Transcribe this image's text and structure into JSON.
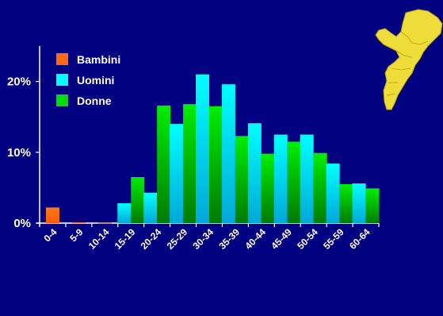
{
  "chart_data": {
    "type": "bar",
    "categories": [
      "0-4",
      "5-9",
      "10-14",
      "15-19",
      "20-24",
      "25-29",
      "30-34",
      "35-39",
      "40-44",
      "45-49",
      "50-54",
      "55-59",
      "60-64"
    ],
    "series": [
      {
        "name": "Bambini",
        "color": "#ff6a13",
        "values": [
          2.2,
          0.1,
          0.05,
          null,
          null,
          null,
          null,
          null,
          null,
          null,
          null,
          null,
          null
        ]
      },
      {
        "name": "Uomini",
        "color": "#00ffff",
        "values": [
          null,
          null,
          null,
          2.8,
          4.3,
          14.0,
          21.0,
          19.6,
          14.1,
          12.5,
          12.5,
          8.4,
          5.6
        ]
      },
      {
        "name": "Donne",
        "color": "#00dd00",
        "values": [
          null,
          null,
          null,
          6.5,
          16.6,
          16.8,
          16.5,
          12.3,
          9.8,
          11.5,
          9.9,
          5.5,
          4.9
        ]
      }
    ],
    "yticks": [
      {
        "value": 0,
        "label": "0%"
      },
      {
        "value": 10,
        "label": "10%"
      },
      {
        "value": 20,
        "label": "20%"
      }
    ],
    "ylim": [
      0,
      25
    ],
    "legend_position": "top-left",
    "grid": false,
    "decoration": "map-of-mozambique"
  }
}
